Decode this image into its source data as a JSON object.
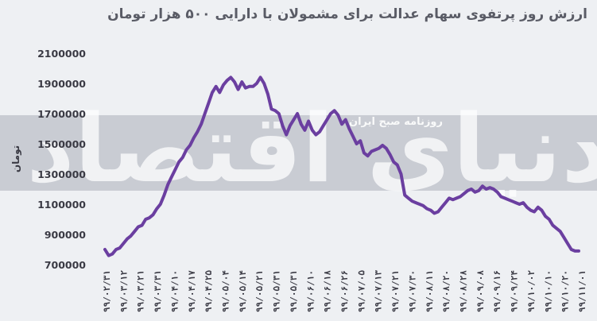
{
  "title": "ارزش روز پرتفوی سهام عدالت برای مشمولان با دارایی ۵۰۰ هزار تومان",
  "watermark": {
    "main_text": "دنیای اقتصاد",
    "band_text": "روزنامه صبح ایران"
  },
  "colors": {
    "line": "#6b3fa0",
    "band": "#c9ccd3",
    "background": "#eef0f3",
    "watermark": "#ffffff"
  },
  "chart_data": {
    "type": "line",
    "title": "ارزش روز پرتفوی سهام عدالت برای مشمولان با دارایی ۵۰۰ هزار تومان",
    "xlabel": "",
    "ylabel": "تومان",
    "ylim": [
      700000,
      2100000
    ],
    "yticks": [
      700000,
      900000,
      1100000,
      1300000,
      1500000,
      1700000,
      1900000,
      2100000
    ],
    "ytick_labels": [
      "700000",
      "900000",
      "1100000",
      "1300000",
      "1500000",
      "1700000",
      "1900000",
      "2100000"
    ],
    "grid": false,
    "legend": "none",
    "x_tick_labels": [
      "۹۹/۰۲/۳۱",
      "۹۹/۰۳/۱۲",
      "۹۹/۰۳/۲۱",
      "۹۹/۰۳/۳۱",
      "۹۹/۰۴/۱۰",
      "۹۹/۰۴/۱۷",
      "۹۹/۰۴/۲۵",
      "۹۹/۰۵/۰۴",
      "۹۹/۰۵/۱۴",
      "۹۹/۰۵/۲۱",
      "۹۹/۰۵/۳۱",
      "۹۹/۰۵/۳۱",
      "۹۹/۰۶/۱۰",
      "۹۹/۰۶/۱۸",
      "۹۹/۰۶/۲۶",
      "۹۹/۰۷/۰۵",
      "۹۹/۰۷/۱۳",
      "۹۹/۰۷/۲۱",
      "۹۹/۰۷/۳۰",
      "۹۹/۰۸/۱۱",
      "۹۹/۰۸/۲۰",
      "۹۹/۰۸/۲۸",
      "۹۹/۰۹/۰۸",
      "۹۹/۰۹/۱۶",
      "۹۹/۰۹/۲۴",
      "۹۹/۱۰/۰۲",
      "۹۹/۱۰/۱۰",
      "۹۹/۱۰/۲۰",
      "۹۹/۱۱/۰۱"
    ],
    "series": [
      {
        "values": [
          800000,
          760000,
          770000,
          800000,
          810000,
          840000,
          870000,
          890000,
          920000,
          950000,
          960000,
          1000000,
          1010000,
          1030000,
          1070000,
          1100000,
          1160000,
          1230000,
          1280000,
          1330000,
          1380000,
          1410000,
          1460000,
          1490000,
          1540000,
          1580000,
          1630000,
          1700000,
          1770000,
          1840000,
          1880000,
          1840000,
          1890000,
          1920000,
          1940000,
          1910000,
          1860000,
          1910000,
          1870000,
          1880000,
          1880000,
          1900000,
          1940000,
          1900000,
          1830000,
          1730000,
          1720000,
          1700000,
          1620000,
          1560000,
          1620000,
          1660000,
          1700000,
          1630000,
          1590000,
          1650000,
          1590000,
          1560000,
          1580000,
          1620000,
          1660000,
          1700000,
          1720000,
          1690000,
          1630000,
          1660000,
          1600000,
          1550000,
          1500000,
          1520000,
          1440000,
          1420000,
          1450000,
          1460000,
          1470000,
          1490000,
          1470000,
          1430000,
          1380000,
          1360000,
          1300000,
          1160000,
          1140000,
          1120000,
          1110000,
          1100000,
          1090000,
          1070000,
          1060000,
          1040000,
          1050000,
          1080000,
          1110000,
          1140000,
          1130000,
          1140000,
          1150000,
          1170000,
          1190000,
          1200000,
          1180000,
          1190000,
          1220000,
          1200000,
          1210000,
          1200000,
          1180000,
          1150000,
          1140000,
          1130000,
          1120000,
          1110000,
          1100000,
          1110000,
          1080000,
          1060000,
          1050000,
          1080000,
          1060000,
          1020000,
          1000000,
          960000,
          940000,
          920000,
          880000,
          840000,
          800000,
          790000,
          790000
        ]
      }
    ]
  }
}
